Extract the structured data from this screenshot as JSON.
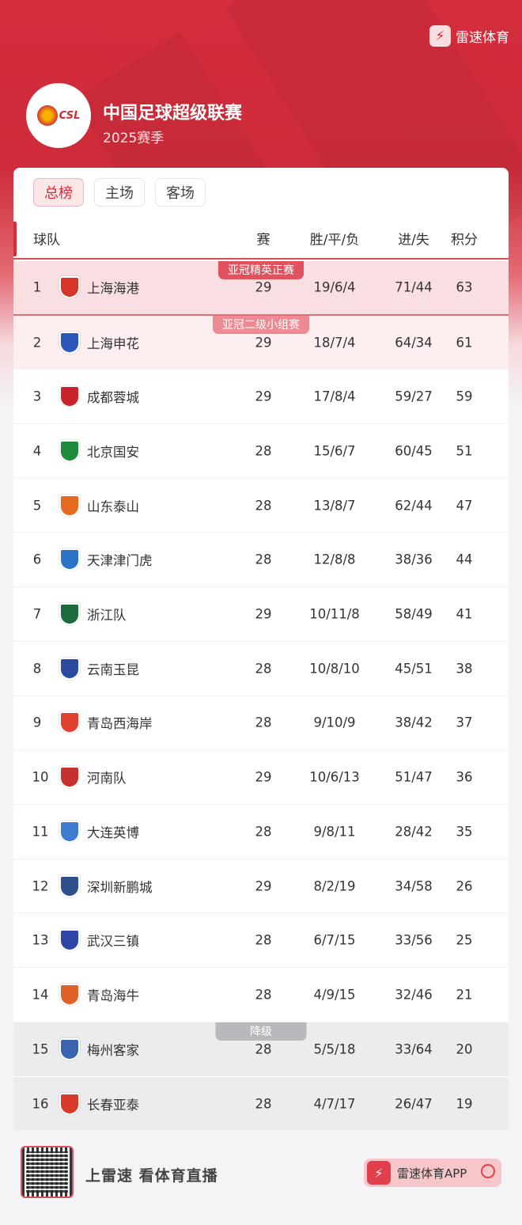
{
  "brand": {
    "name": "雷速体育",
    "icon": "lightning-bolt-icon",
    "color": "#d42d3c"
  },
  "league": {
    "title": "中国足球超级联赛",
    "season": "2025赛季",
    "logo_text": "CSL"
  },
  "tabs": [
    {
      "label": "总榜",
      "active": true
    },
    {
      "label": "主场",
      "active": false
    },
    {
      "label": "客场",
      "active": false
    }
  ],
  "columns": {
    "team": "球队",
    "played": "赛",
    "wdl": "胜/平/负",
    "goals": "进/失",
    "points": "积分"
  },
  "zones": {
    "acl_elite": "亚冠精英正赛",
    "acl_two": "亚冠二级小组赛",
    "relegation": "降级"
  },
  "rows": [
    {
      "rank": "1",
      "team": "上海海港",
      "played": "29",
      "wdl": "19/6/4",
      "goals": "71/44",
      "points": "63",
      "color": "#d8352a"
    },
    {
      "rank": "2",
      "team": "上海申花",
      "played": "29",
      "wdl": "18/7/4",
      "goals": "64/34",
      "points": "61",
      "color": "#2a57b8"
    },
    {
      "rank": "3",
      "team": "成都蓉城",
      "played": "29",
      "wdl": "17/8/4",
      "goals": "59/27",
      "points": "59",
      "color": "#c9232e"
    },
    {
      "rank": "4",
      "team": "北京国安",
      "played": "28",
      "wdl": "15/6/7",
      "goals": "60/45",
      "points": "51",
      "color": "#1f8a3a"
    },
    {
      "rank": "5",
      "team": "山东泰山",
      "played": "28",
      "wdl": "13/8/7",
      "goals": "62/44",
      "points": "47",
      "color": "#e56a1f"
    },
    {
      "rank": "6",
      "team": "天津津门虎",
      "played": "28",
      "wdl": "12/8/8",
      "goals": "38/36",
      "points": "44",
      "color": "#2a73c8"
    },
    {
      "rank": "7",
      "team": "浙江队",
      "played": "29",
      "wdl": "10/11/8",
      "goals": "58/49",
      "points": "41",
      "color": "#1b6b3c"
    },
    {
      "rank": "8",
      "team": "云南玉昆",
      "played": "28",
      "wdl": "10/8/10",
      "goals": "45/51",
      "points": "38",
      "color": "#2b4aa0"
    },
    {
      "rank": "9",
      "team": "青岛西海岸",
      "played": "28",
      "wdl": "9/10/9",
      "goals": "38/42",
      "points": "37",
      "color": "#e04030"
    },
    {
      "rank": "10",
      "team": "河南队",
      "played": "29",
      "wdl": "10/6/13",
      "goals": "51/47",
      "points": "36",
      "color": "#c8302e"
    },
    {
      "rank": "11",
      "team": "大连英博",
      "played": "28",
      "wdl": "9/8/11",
      "goals": "28/42",
      "points": "35",
      "color": "#3d7ad0"
    },
    {
      "rank": "12",
      "team": "深圳新鹏城",
      "played": "29",
      "wdl": "8/2/19",
      "goals": "34/58",
      "points": "26",
      "color": "#2e4e8c"
    },
    {
      "rank": "13",
      "team": "武汉三镇",
      "played": "28",
      "wdl": "6/7/15",
      "goals": "33/56",
      "points": "25",
      "color": "#2f46a8"
    },
    {
      "rank": "14",
      "team": "青岛海牛",
      "played": "28",
      "wdl": "4/9/15",
      "goals": "32/46",
      "points": "21",
      "color": "#e0602a"
    },
    {
      "rank": "15",
      "team": "梅州客家",
      "played": "28",
      "wdl": "5/5/18",
      "goals": "33/64",
      "points": "20",
      "color": "#3a64b0"
    },
    {
      "rank": "16",
      "team": "长春亚泰",
      "played": "28",
      "wdl": "4/7/17",
      "goals": "26/47",
      "points": "19",
      "color": "#d83a2c"
    }
  ],
  "footer": {
    "slogan": "上雷速 看体育直播",
    "app_label": "雷速体育APP",
    "qr_icon": "qr-code-icon",
    "search_icon": "search-icon"
  }
}
